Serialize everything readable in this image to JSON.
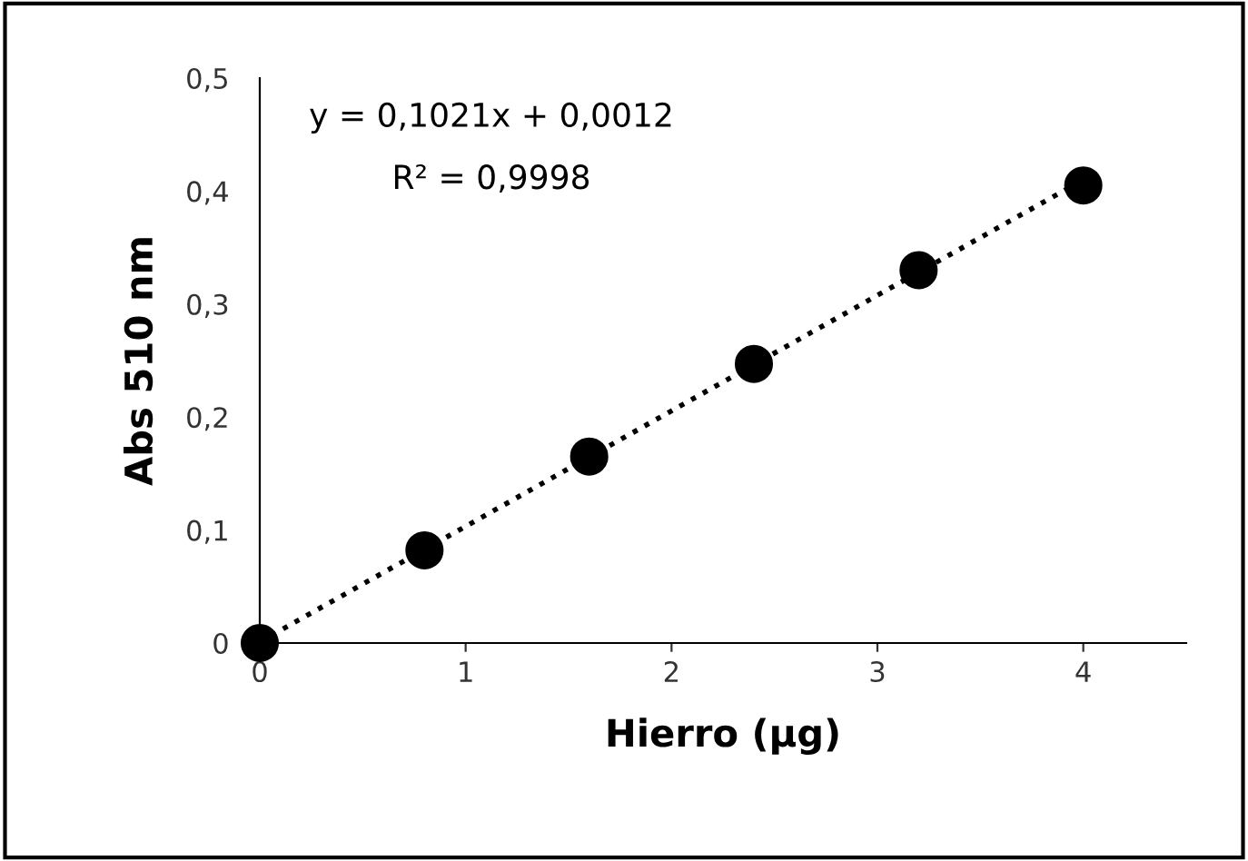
{
  "chart_data": {
    "type": "scatter",
    "xlabel": "Hierro (µg)",
    "ylabel": "Abs 510 nm",
    "xlim": [
      0,
      4.5
    ],
    "xticks": [
      0,
      1,
      2,
      3,
      4
    ],
    "ylim": [
      0,
      0.5
    ],
    "yticks": [
      {
        "value": 0,
        "label": "0"
      },
      {
        "value": 0.1,
        "label": "0,1"
      },
      {
        "value": 0.2,
        "label": "0,2"
      },
      {
        "value": 0.3,
        "label": "0,3"
      },
      {
        "value": 0.4,
        "label": "0,4"
      },
      {
        "value": 0.5,
        "label": "0,5"
      }
    ],
    "grid": false,
    "legend": false,
    "series": [
      {
        "type": "line",
        "color": "#000000",
        "x": [
          0,
          4
        ],
        "values": [
          0.001,
          0.41
        ],
        "line_style": "dotted",
        "marker": "none"
      },
      {
        "color": "#000000",
        "x": [
          0,
          0.8,
          1.6,
          2.4,
          3.2,
          4.0
        ],
        "values": [
          0,
          0.082,
          0.165,
          0.247,
          0.33,
          0.405
        ],
        "marker": "circle"
      }
    ],
    "annotations": [
      "y = 0,1021x + 0,0012",
      "R² = 0,9998"
    ]
  }
}
